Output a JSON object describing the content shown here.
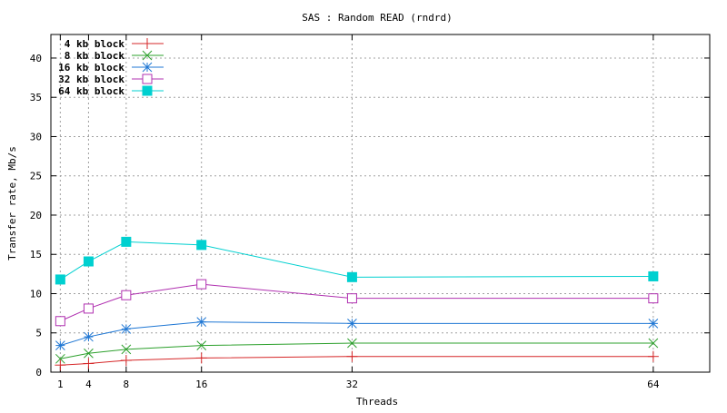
{
  "chart_data": {
    "type": "line",
    "title": "SAS : Random READ (rndrd)",
    "xlabel": "Threads",
    "ylabel": "Transfer rate, Mb/s",
    "x": [
      1,
      4,
      8,
      16,
      32,
      64
    ],
    "xlim": [
      0,
      70
    ],
    "ylim": [
      0,
      43
    ],
    "xticks": [
      1,
      4,
      8,
      16,
      32,
      64
    ],
    "yticks": [
      0,
      5,
      10,
      15,
      20,
      25,
      30,
      35,
      40
    ],
    "grid": true,
    "legend_position": "top-left",
    "series": [
      {
        "name": "4 kb block",
        "color": "#d62728",
        "marker": "plus",
        "values": [
          0.9,
          1.1,
          1.5,
          1.8,
          2.0,
          2.0
        ]
      },
      {
        "name": "8 kb block",
        "color": "#2ca02c",
        "marker": "cross",
        "values": [
          1.7,
          2.4,
          2.9,
          3.4,
          3.7,
          3.7
        ]
      },
      {
        "name": "16 kb block",
        "color": "#1f77d4",
        "marker": "asterisk",
        "values": [
          3.4,
          4.5,
          5.5,
          6.4,
          6.2,
          6.2
        ]
      },
      {
        "name": "32 kb block",
        "color": "#b030b0",
        "marker": "open-square",
        "values": [
          6.5,
          8.1,
          9.8,
          11.2,
          9.4,
          9.4
        ]
      },
      {
        "name": "64 kb block",
        "color": "#00d0d0",
        "marker": "filled-square",
        "values": [
          11.8,
          14.1,
          16.6,
          16.2,
          12.1,
          12.2
        ]
      }
    ]
  }
}
